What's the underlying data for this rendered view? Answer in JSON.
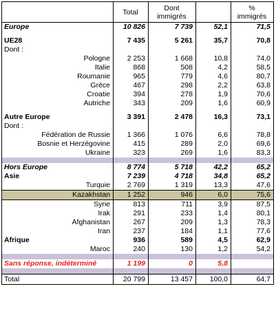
{
  "headers": [
    "",
    "Total",
    "Dont immigrés",
    "",
    "% immigrés"
  ],
  "rows": [
    {
      "k": "r_europe",
      "cells": [
        "Europe",
        "10 826",
        "7 739",
        "52,1",
        "71,5"
      ]
    },
    {
      "k": "r_ue28",
      "cells": [
        "UE28",
        "7 435",
        "5 261",
        "35,7",
        "70,8"
      ]
    },
    {
      "k": "r_dont1",
      "cells": [
        "Dont :",
        "",
        "",
        "",
        ""
      ]
    },
    {
      "k": "r_pol",
      "cells": [
        "Pologne",
        "2 253",
        "1 668",
        "10,8",
        "74,0"
      ]
    },
    {
      "k": "r_ita",
      "cells": [
        "Italie",
        "868",
        "508",
        "4,2",
        "58,5"
      ]
    },
    {
      "k": "r_rou",
      "cells": [
        "Roumanie",
        "965",
        "779",
        "4,6",
        "80,7"
      ]
    },
    {
      "k": "r_gre",
      "cells": [
        "Grèce",
        "467",
        "298",
        "2,2",
        "63,8"
      ]
    },
    {
      "k": "r_cro",
      "cells": [
        "Croatie",
        "394",
        "278",
        "1,9",
        "70,6"
      ]
    },
    {
      "k": "r_aut",
      "cells": [
        "Autriche",
        "343",
        "209",
        "1,6",
        "60,9"
      ]
    },
    {
      "k": "r_autre",
      "cells": [
        "Autre Europe",
        "3 391",
        "2 478",
        "16,3",
        "73,1"
      ]
    },
    {
      "k": "r_dont2",
      "cells": [
        "Dont :",
        "",
        "",
        "",
        ""
      ]
    },
    {
      "k": "r_rus",
      "cells": [
        "Fédération de Russie",
        "1 366",
        "1 076",
        "6,6",
        "78,8"
      ]
    },
    {
      "k": "r_bos",
      "cells": [
        "Bosnie et Herzégovine",
        "415",
        "289",
        "2,0",
        "69,6"
      ]
    },
    {
      "k": "r_ukr",
      "cells": [
        "Ukraine",
        "323",
        "269",
        "1,6",
        "83,3"
      ]
    },
    {
      "k": "r_hors",
      "cells": [
        "Hors Europe",
        "8 774",
        "5 718",
        "42,2",
        "65,2"
      ]
    },
    {
      "k": "r_asie",
      "cells": [
        "Asie",
        "7 239",
        "4 718",
        "34,8",
        "65,2"
      ]
    },
    {
      "k": "r_tur",
      "cells": [
        "Turquie",
        "2 769",
        "1 319",
        "13,3",
        "47,6"
      ]
    },
    {
      "k": "r_kaz",
      "cells": [
        "Kazakhstan",
        "1 252",
        "946",
        "6,0",
        "75,6"
      ]
    },
    {
      "k": "r_syr",
      "cells": [
        "Syrie",
        "813",
        "711",
        "3,9",
        "87,5"
      ]
    },
    {
      "k": "r_irak",
      "cells": [
        "Irak",
        "291",
        "233",
        "1,4",
        "80,1"
      ]
    },
    {
      "k": "r_afg",
      "cells": [
        "Afghanistan",
        "267",
        "209",
        "1,3",
        "78,3"
      ]
    },
    {
      "k": "r_iran",
      "cells": [
        "Iran",
        "237",
        "184",
        "1,1",
        "77,6"
      ]
    },
    {
      "k": "r_afr",
      "cells": [
        "Afrique",
        "936",
        "589",
        "4,5",
        "62,9"
      ]
    },
    {
      "k": "r_mar",
      "cells": [
        "Maroc",
        "240",
        "130",
        "1,2",
        "54,2"
      ]
    },
    {
      "k": "r_sans",
      "cells": [
        "Sans réponse, indéterminé",
        "1 199",
        "0",
        "5,8",
        ""
      ]
    },
    {
      "k": "r_total",
      "cells": [
        "Total",
        "20 799",
        "13 457",
        "100,0",
        "64,7"
      ]
    }
  ],
  "colors": {
    "purple_band": "#cbc2d9",
    "kazakhstan_highlight": "#cdc59f",
    "red_text": "#e2231a"
  }
}
